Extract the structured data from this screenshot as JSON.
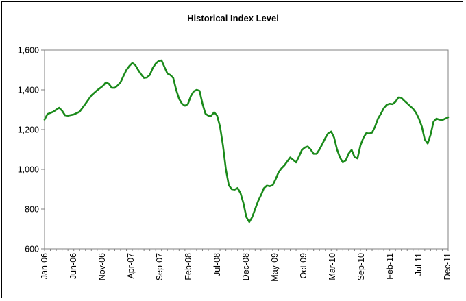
{
  "chart_data": {
    "type": "line",
    "title": "Historical Index Level",
    "xlabel": "",
    "ylabel": "",
    "ylim": [
      600,
      1600
    ],
    "y_ticks": [
      600,
      800,
      1000,
      1200,
      1400,
      1600
    ],
    "y_tick_labels": [
      "600",
      "800",
      "1,000",
      "1,200",
      "1,400",
      "1,600"
    ],
    "x_tick_labels": [
      "Jan-06",
      "Jun-06",
      "Nov-06",
      "Apr-07",
      "Sep-07",
      "Feb-08",
      "Jul-08",
      "Dec-08",
      "May-09",
      "Oct-09",
      "Mar-10",
      "Sep-10",
      "Feb-11",
      "Jul-11",
      "Dec-11"
    ],
    "grid": false,
    "legend": "none",
    "line_color": "#1a8a1a",
    "series": [
      {
        "values": [
          [
            0,
            1250
          ],
          [
            0.5,
            1278
          ],
          [
            1.0,
            1284
          ],
          [
            1.5,
            1290
          ],
          [
            2.0,
            1300
          ],
          [
            2.5,
            1310
          ],
          [
            3.0,
            1295
          ],
          [
            3.5,
            1272
          ],
          [
            4.0,
            1270
          ],
          [
            5.0,
            1276
          ],
          [
            6.0,
            1290
          ],
          [
            7.0,
            1330
          ],
          [
            8.0,
            1372
          ],
          [
            9.0,
            1398
          ],
          [
            10.0,
            1420
          ],
          [
            10.5,
            1438
          ],
          [
            11.0,
            1430
          ],
          [
            11.5,
            1410
          ],
          [
            12.0,
            1410
          ],
          [
            12.5,
            1422
          ],
          [
            13.0,
            1438
          ],
          [
            13.5,
            1470
          ],
          [
            14.0,
            1500
          ],
          [
            14.5,
            1520
          ],
          [
            15.0,
            1535
          ],
          [
            15.5,
            1525
          ],
          [
            16.0,
            1500
          ],
          [
            16.5,
            1478
          ],
          [
            17.0,
            1460
          ],
          [
            17.5,
            1462
          ],
          [
            18.0,
            1475
          ],
          [
            18.5,
            1510
          ],
          [
            19.0,
            1532
          ],
          [
            19.5,
            1545
          ],
          [
            20.0,
            1548
          ],
          [
            20.5,
            1515
          ],
          [
            21.0,
            1482
          ],
          [
            21.5,
            1475
          ],
          [
            22.0,
            1460
          ],
          [
            22.5,
            1400
          ],
          [
            23.0,
            1355
          ],
          [
            23.5,
            1330
          ],
          [
            24.0,
            1320
          ],
          [
            24.5,
            1328
          ],
          [
            25.0,
            1368
          ],
          [
            25.5,
            1392
          ],
          [
            26.0,
            1400
          ],
          [
            26.5,
            1395
          ],
          [
            27.0,
            1330
          ],
          [
            27.5,
            1280
          ],
          [
            28.0,
            1270
          ],
          [
            28.5,
            1270
          ],
          [
            29.0,
            1287
          ],
          [
            29.5,
            1270
          ],
          [
            30.0,
            1215
          ],
          [
            30.5,
            1120
          ],
          [
            31.0,
            1000
          ],
          [
            31.5,
            920
          ],
          [
            32.0,
            900
          ],
          [
            32.5,
            898
          ],
          [
            33.0,
            906
          ],
          [
            33.5,
            880
          ],
          [
            34.0,
            830
          ],
          [
            34.5,
            760
          ],
          [
            35.0,
            735
          ],
          [
            35.5,
            760
          ],
          [
            36.0,
            800
          ],
          [
            36.5,
            840
          ],
          [
            37.0,
            870
          ],
          [
            37.5,
            905
          ],
          [
            38.0,
            918
          ],
          [
            38.5,
            915
          ],
          [
            39.0,
            920
          ],
          [
            39.5,
            950
          ],
          [
            40.0,
            985
          ],
          [
            40.5,
            1005
          ],
          [
            41.0,
            1020
          ],
          [
            41.5,
            1040
          ],
          [
            42.0,
            1060
          ],
          [
            42.5,
            1048
          ],
          [
            43.0,
            1035
          ],
          [
            43.5,
            1065
          ],
          [
            44.0,
            1098
          ],
          [
            44.5,
            1110
          ],
          [
            45.0,
            1115
          ],
          [
            45.5,
            1100
          ],
          [
            46.0,
            1078
          ],
          [
            46.5,
            1078
          ],
          [
            47.0,
            1100
          ],
          [
            47.5,
            1128
          ],
          [
            48.0,
            1158
          ],
          [
            48.5,
            1182
          ],
          [
            49.0,
            1190
          ],
          [
            49.5,
            1160
          ],
          [
            50.0,
            1100
          ],
          [
            50.5,
            1060
          ],
          [
            51.0,
            1035
          ],
          [
            51.5,
            1045
          ],
          [
            52.0,
            1080
          ],
          [
            52.5,
            1098
          ],
          [
            53.0,
            1062
          ],
          [
            53.5,
            1055
          ],
          [
            54.0,
            1120
          ],
          [
            54.5,
            1158
          ],
          [
            55.0,
            1182
          ],
          [
            55.5,
            1180
          ],
          [
            56.0,
            1185
          ],
          [
            56.5,
            1215
          ],
          [
            57.0,
            1255
          ],
          [
            57.5,
            1280
          ],
          [
            58.0,
            1308
          ],
          [
            58.5,
            1325
          ],
          [
            59.0,
            1330
          ],
          [
            59.5,
            1328
          ],
          [
            60.0,
            1340
          ],
          [
            60.5,
            1362
          ],
          [
            61.0,
            1360
          ],
          [
            61.5,
            1345
          ],
          [
            62.0,
            1332
          ],
          [
            62.5,
            1318
          ],
          [
            63.0,
            1305
          ],
          [
            63.5,
            1285
          ],
          [
            64.0,
            1255
          ],
          [
            64.5,
            1215
          ],
          [
            65.0,
            1150
          ],
          [
            65.5,
            1130
          ],
          [
            66.0,
            1175
          ],
          [
            66.5,
            1240
          ],
          [
            67.0,
            1255
          ],
          [
            67.5,
            1250
          ],
          [
            68.0,
            1248
          ],
          [
            68.5,
            1255
          ],
          [
            69.0,
            1262
          ]
        ]
      }
    ]
  }
}
